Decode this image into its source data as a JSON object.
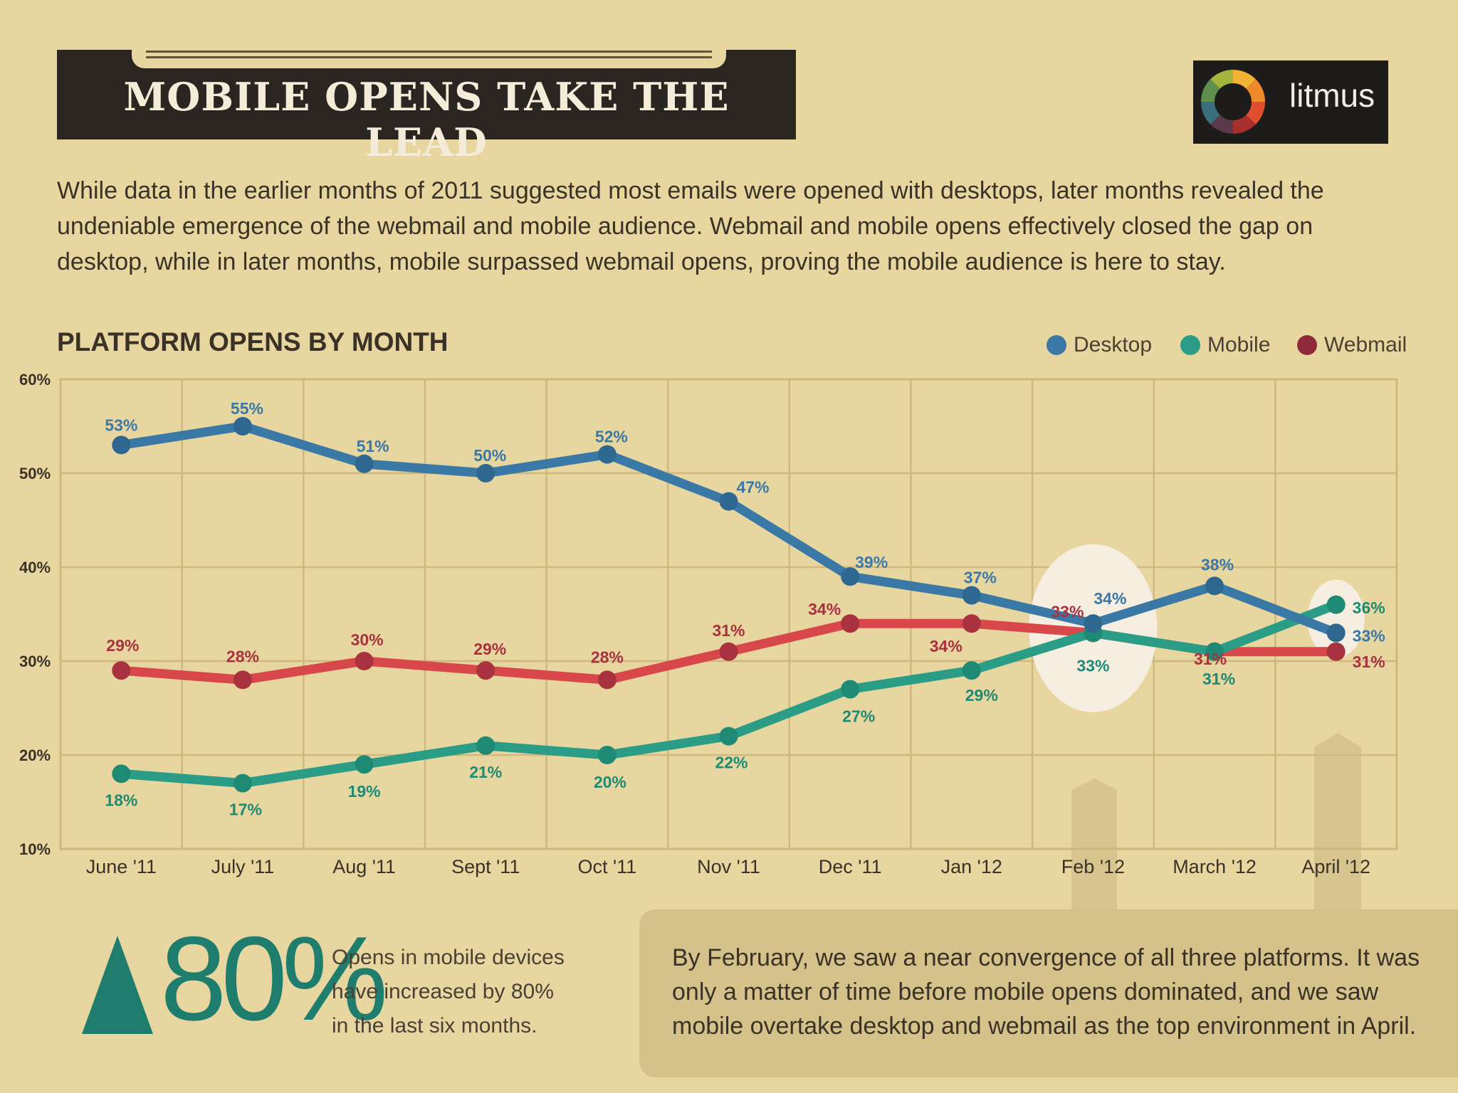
{
  "header": {
    "title": "MOBILE OPENS TAKE THE LEAD"
  },
  "logo": {
    "text": "litmus"
  },
  "intro": "While data in the earlier months of 2011 suggested most emails were opened with desktops, later months revealed the undeniable emergence of the webmail and mobile audience. Webmail and mobile opens effectively closed the gap on desktop, while in later months, mobile surpassed webmail opens, proving the mobile audience is here to stay.",
  "colors": {
    "desktop": "#3a78a6",
    "mobile": "#2b9c86",
    "webmail": "#d8474a",
    "grid": "#cfb77d",
    "accent": "#1e7d6d"
  },
  "chart_data": {
    "type": "line",
    "title": "PLATFORM OPENS BY MONTH",
    "categories": [
      "June '11",
      "July '11",
      "Aug '11",
      "Sept '11",
      "Oct '11",
      "Nov '11",
      "Dec '11",
      "Jan '12",
      "Feb '12",
      "March '12",
      "April '12"
    ],
    "ylim": [
      10,
      60
    ],
    "yticks": [
      "10%",
      "20%",
      "30%",
      "40%",
      "50%",
      "60%"
    ],
    "legend_position": "top-right",
    "series": [
      {
        "name": "Desktop",
        "key": "desktop",
        "values": [
          53,
          55,
          51,
          50,
          52,
          47,
          39,
          37,
          34,
          38,
          33
        ],
        "labels": [
          "53%",
          "55%",
          "51%",
          "50%",
          "52%",
          "47%",
          "39%",
          "37%",
          "34%",
          "38%",
          "33%"
        ]
      },
      {
        "name": "Mobile",
        "key": "mobile",
        "values": [
          18,
          17,
          19,
          21,
          20,
          22,
          27,
          29,
          33,
          31,
          36
        ],
        "labels": [
          "18%",
          "17%",
          "19%",
          "21%",
          "20%",
          "22%",
          "27%",
          "29%",
          "33%",
          "31%",
          "36%"
        ]
      },
      {
        "name": "Webmail",
        "key": "webmail",
        "values": [
          29,
          28,
          30,
          29,
          28,
          31,
          34,
          34,
          33,
          31,
          31
        ],
        "labels": [
          "29%",
          "28%",
          "30%",
          "29%",
          "28%",
          "31%",
          "34%",
          "34%",
          "33%",
          "31%",
          "31%"
        ]
      }
    ]
  },
  "stat": {
    "value": "80%",
    "description": "Opens in mobile devices have increased by 80% in the last six months."
  },
  "callout": "By February, we saw a near convergence of all three platforms. It was only a matter of time before mobile opens dominated, and we saw mobile overtake desktop and webmail as the top environment in April."
}
